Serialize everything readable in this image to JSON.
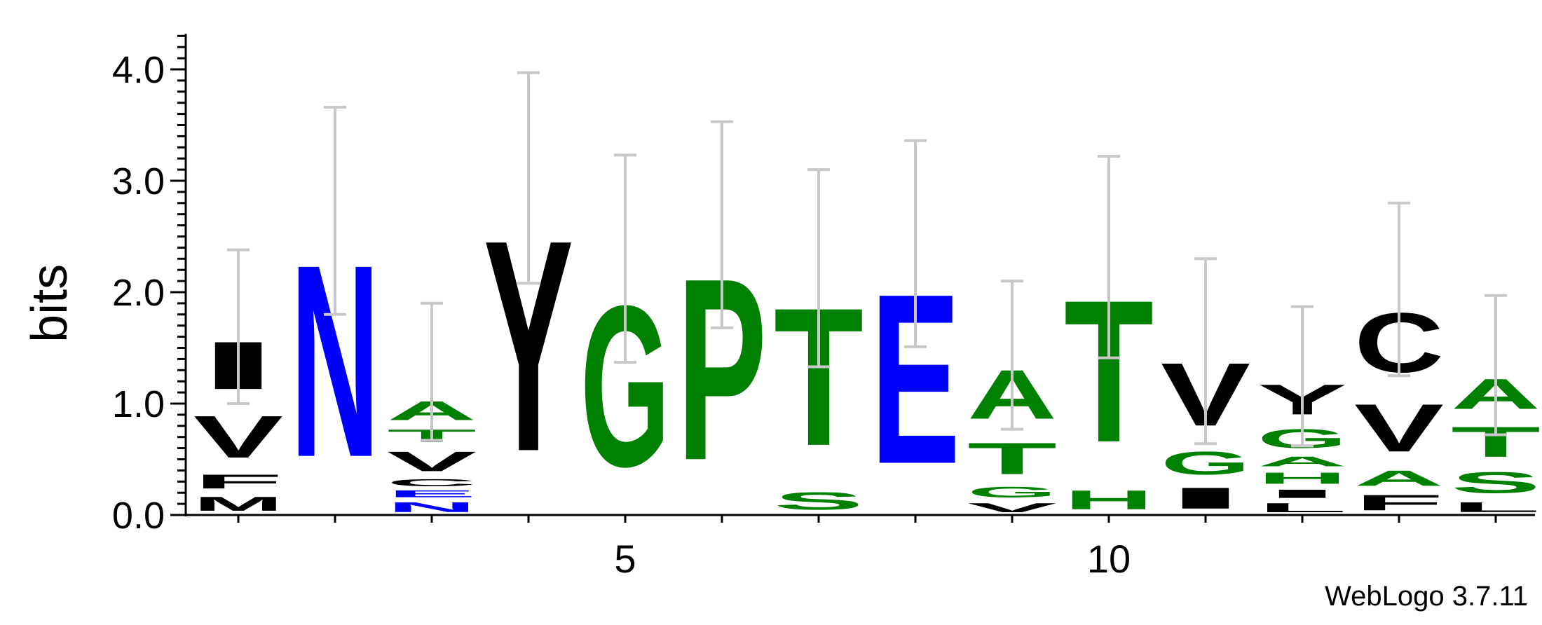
{
  "chart_data": {
    "type": "sequence-logo",
    "ylabel": "bits",
    "ylim": [
      0,
      4.3
    ],
    "y_ticks": [
      "0.0",
      "1.0",
      "2.0",
      "3.0",
      "4.0"
    ],
    "x_tick_labels": [
      {
        "position": 5,
        "label": "5"
      },
      {
        "position": 10,
        "label": "10"
      }
    ],
    "colors": {
      "hydrophobic": "#000000",
      "polar": "#008000",
      "acidic_amide": "#0000FF",
      "error_bar": "#C8C8C8"
    },
    "positions": [
      {
        "pos": 1,
        "letters": [
          {
            "l": "M",
            "h": 0.2,
            "c": "#000000"
          },
          {
            "l": "F",
            "h": 0.2,
            "c": "#000000"
          },
          {
            "l": "V",
            "h": 0.6,
            "c": "#000000"
          },
          {
            "l": "I",
            "h": 0.68,
            "c": "#000000"
          }
        ],
        "err": [
          1.0,
          2.38
        ]
      },
      {
        "pos": 2,
        "letters": [
          {
            "l": "N",
            "h": 2.75,
            "c": "#0000FF"
          }
        ],
        "err": [
          1.8,
          3.66
        ]
      },
      {
        "pos": 3,
        "letters": [
          {
            "l": "N",
            "h": 0.14,
            "c": "#0000FF"
          },
          {
            "l": "E",
            "h": 0.1,
            "c": "#0000FF"
          },
          {
            "l": "C",
            "h": 0.1,
            "c": "#000000"
          },
          {
            "l": "V",
            "h": 0.28,
            "c": "#000000"
          },
          {
            "l": "T",
            "h": 0.18,
            "c": "#008000"
          },
          {
            "l": "A",
            "h": 0.27,
            "c": "#008000"
          }
        ],
        "err": [
          0.67,
          1.9
        ]
      },
      {
        "pos": 4,
        "letters": [
          {
            "l": "Y",
            "h": 3.02,
            "c": "#000000"
          }
        ],
        "err": [
          2.08,
          3.97
        ]
      },
      {
        "pos": 5,
        "letters": [
          {
            "l": "G",
            "h": 2.3,
            "c": "#008000"
          }
        ],
        "err": [
          1.37,
          3.23
        ]
      },
      {
        "pos": 6,
        "letters": [
          {
            "l": "P",
            "h": 2.6,
            "c": "#008000"
          }
        ],
        "err": [
          1.68,
          3.53
        ]
      },
      {
        "pos": 7,
        "letters": [
          {
            "l": "S",
            "h": 0.25,
            "c": "#008000"
          },
          {
            "l": "T",
            "h": 1.97,
            "c": "#008000"
          }
        ],
        "err": [
          1.33,
          3.1
        ]
      },
      {
        "pos": 8,
        "letters": [
          {
            "l": "E",
            "h": 2.43,
            "c": "#0000FF"
          }
        ],
        "err": [
          1.51,
          3.36
        ]
      },
      {
        "pos": 9,
        "letters": [
          {
            "l": "V",
            "h": 0.13,
            "c": "#000000"
          },
          {
            "l": "G",
            "h": 0.15,
            "c": "#008000"
          },
          {
            "l": "T",
            "h": 0.45,
            "c": "#008000"
          },
          {
            "l": "A",
            "h": 0.7,
            "c": "#008000"
          }
        ],
        "err": [
          0.77,
          2.1
        ]
      },
      {
        "pos": 10,
        "letters": [
          {
            "l": "H",
            "h": 0.27,
            "c": "#008000"
          },
          {
            "l": "T",
            "h": 2.03,
            "c": "#008000"
          }
        ],
        "err": [
          1.41,
          3.22
        ]
      },
      {
        "pos": 11,
        "letters": [
          {
            "l": "I",
            "h": 0.3,
            "c": "#000000"
          },
          {
            "l": "G",
            "h": 0.33,
            "c": "#008000"
          },
          {
            "l": "V",
            "h": 0.9,
            "c": "#000000"
          }
        ],
        "err": [
          0.64,
          2.3
        ]
      },
      {
        "pos": 12,
        "letters": [
          {
            "l": "L",
            "h": 0.13,
            "c": "#000000"
          },
          {
            "l": "I",
            "h": 0.12,
            "c": "#000000"
          },
          {
            "l": "H",
            "h": 0.16,
            "c": "#008000"
          },
          {
            "l": "A",
            "h": 0.14,
            "c": "#008000"
          },
          {
            "l": "G",
            "h": 0.27,
            "c": "#008000"
          },
          {
            "l": "Y",
            "h": 0.43,
            "c": "#000000"
          }
        ],
        "err": [
          0.62,
          1.87
        ]
      },
      {
        "pos": 13,
        "letters": [
          {
            "l": "F",
            "h": 0.22,
            "c": "#000000"
          },
          {
            "l": "A",
            "h": 0.22,
            "c": "#008000"
          },
          {
            "l": "V",
            "h": 0.68,
            "c": "#000000"
          },
          {
            "l": "C",
            "h": 0.85,
            "c": "#000000"
          }
        ],
        "err": [
          1.25,
          2.8
        ]
      },
      {
        "pos": 14,
        "letters": [
          {
            "l": "L",
            "h": 0.14,
            "c": "#000000"
          },
          {
            "l": "S",
            "h": 0.3,
            "c": "#008000"
          },
          {
            "l": "T",
            "h": 0.43,
            "c": "#008000"
          },
          {
            "l": "A",
            "h": 0.43,
            "c": "#008000"
          }
        ],
        "err": [
          0.72,
          1.97
        ]
      }
    ]
  },
  "footer": {
    "credit": "WebLogo 3.7.11"
  }
}
